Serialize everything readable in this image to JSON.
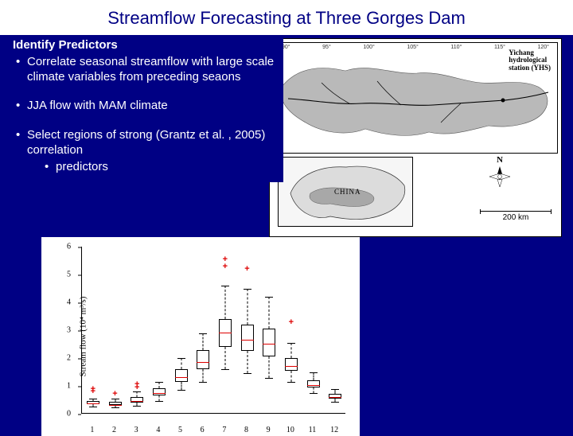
{
  "title": "Streamflow Forecasting at Three Gorges Dam",
  "text": {
    "heading": "Identify Predictors",
    "bullet1": "Correlate seasonal streamflow with large scale climate variables from preceding seaons",
    "bullet2": "JJA flow with MAM climate",
    "bullet3": "Select regions of strong (Grantz et al. , 2005) correlation",
    "sub3a": "predictors"
  },
  "map": {
    "yhs_l1": "Yichang",
    "yhs_l2": "hydrological",
    "yhs_l3": "station (YHS)",
    "inset_label": "CHINA",
    "compass_label": "N",
    "scalebar_label": "200 km",
    "lon_ticks": [
      "90°",
      "95°",
      "100°",
      "105°",
      "110°",
      "115°",
      "120°"
    ],
    "watershed_fill": "#b9b9b9",
    "river_stroke": "#000000"
  },
  "boxplot": {
    "ylabel": "Stream flow (10⁴ m³/s)",
    "ylim": [
      0,
      6
    ],
    "yticks": [
      0,
      1,
      2,
      3,
      4,
      5,
      6
    ],
    "xticks": [
      "1",
      "2",
      "3",
      "4",
      "5",
      "6",
      "7",
      "8",
      "9",
      "10",
      "11",
      "12"
    ],
    "box_border": "#000000",
    "median_color": "#d00000",
    "outlier_color": "#d00000",
    "series": [
      {
        "x": 1,
        "q1": 0.35,
        "med": 0.4,
        "q3": 0.45,
        "lo": 0.25,
        "hi": 0.55,
        "out": [
          0.8,
          0.9
        ]
      },
      {
        "x": 2,
        "q1": 0.3,
        "med": 0.35,
        "q3": 0.42,
        "lo": 0.22,
        "hi": 0.55,
        "out": [
          0.72
        ]
      },
      {
        "x": 3,
        "q1": 0.4,
        "med": 0.48,
        "q3": 0.6,
        "lo": 0.3,
        "hi": 0.8,
        "out": [
          0.95,
          1.05
        ]
      },
      {
        "x": 4,
        "q1": 0.65,
        "med": 0.78,
        "q3": 0.92,
        "lo": 0.45,
        "hi": 1.15,
        "out": []
      },
      {
        "x": 5,
        "q1": 1.15,
        "med": 1.35,
        "q3": 1.6,
        "lo": 0.85,
        "hi": 2.0,
        "out": []
      },
      {
        "x": 6,
        "q1": 1.6,
        "med": 1.9,
        "q3": 2.3,
        "lo": 1.15,
        "hi": 2.9,
        "out": []
      },
      {
        "x": 7,
        "q1": 2.4,
        "med": 2.95,
        "q3": 3.4,
        "lo": 1.6,
        "hi": 4.6,
        "out": [
          5.3,
          5.55
        ]
      },
      {
        "x": 8,
        "q1": 2.25,
        "med": 2.7,
        "q3": 3.2,
        "lo": 1.45,
        "hi": 4.5,
        "out": [
          5.2
        ]
      },
      {
        "x": 9,
        "q1": 2.05,
        "med": 2.55,
        "q3": 3.05,
        "lo": 1.3,
        "hi": 4.2,
        "out": []
      },
      {
        "x": 10,
        "q1": 1.55,
        "med": 1.75,
        "q3": 2.0,
        "lo": 1.15,
        "hi": 2.55,
        "out": [
          3.3
        ]
      },
      {
        "x": 11,
        "q1": 0.95,
        "med": 1.05,
        "q3": 1.2,
        "lo": 0.75,
        "hi": 1.5,
        "out": []
      },
      {
        "x": 12,
        "q1": 0.55,
        "med": 0.62,
        "q3": 0.72,
        "lo": 0.42,
        "hi": 0.9,
        "out": []
      }
    ]
  }
}
